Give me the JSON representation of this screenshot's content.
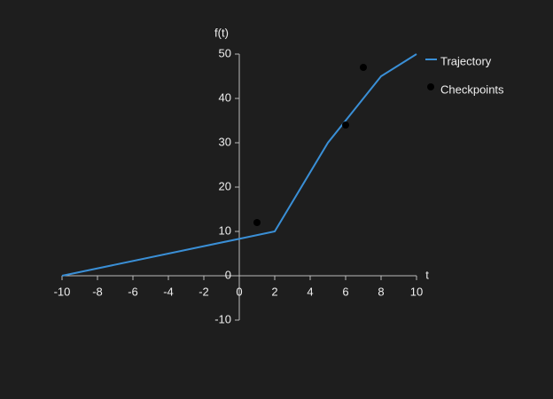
{
  "chart_data": {
    "type": "line",
    "background": "#1e1e1e",
    "x_label": "t",
    "y_label": "f(t)",
    "xlim": [
      -10,
      10
    ],
    "ylim": [
      -10,
      50
    ],
    "xticks": [
      -10,
      -8,
      -6,
      -4,
      -2,
      0,
      2,
      4,
      6,
      8,
      10
    ],
    "yticks": [
      -10,
      0,
      10,
      20,
      30,
      40,
      50
    ],
    "legend": "top-right",
    "series": [
      {
        "name": "Trajectory",
        "color": "#3a8fd6",
        "mark": "line",
        "x": [
          -10,
          2,
          5,
          8,
          10
        ],
        "values": [
          0,
          10,
          30,
          45,
          50
        ]
      },
      {
        "name": "Checkpoints",
        "color": "#000000",
        "mark": "point",
        "x": [
          1,
          6,
          7
        ],
        "values": [
          12,
          34,
          47
        ]
      }
    ]
  }
}
